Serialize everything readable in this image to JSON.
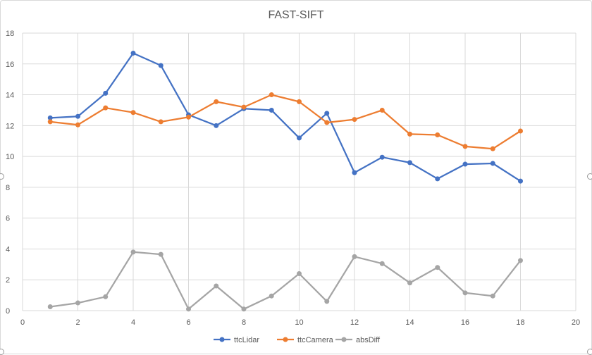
{
  "chart_data": {
    "type": "line",
    "title": "FAST-SIFT",
    "xlabel": "",
    "ylabel": "",
    "xlim": [
      0,
      20
    ],
    "ylim": [
      0,
      18
    ],
    "x_ticks": [
      0,
      2,
      4,
      6,
      8,
      10,
      12,
      14,
      16,
      18,
      20
    ],
    "y_ticks": [
      0,
      2,
      4,
      6,
      8,
      10,
      12,
      14,
      16,
      18
    ],
    "grid": true,
    "legend_position": "bottom",
    "x": [
      1,
      2,
      3,
      4,
      5,
      6,
      7,
      8,
      9,
      10,
      11,
      12,
      13,
      14,
      15,
      16,
      17,
      18
    ],
    "series": [
      {
        "name": "ttcLidar",
        "color": "#4472c4",
        "values": [
          12.5,
          12.6,
          14.1,
          16.7,
          15.9,
          12.7,
          12.0,
          13.1,
          13.0,
          11.2,
          12.8,
          8.95,
          9.95,
          9.6,
          8.55,
          9.5,
          9.55,
          8.4
        ]
      },
      {
        "name": "ttcCamera",
        "color": "#ed7d31",
        "values": [
          12.25,
          12.05,
          13.15,
          12.85,
          12.25,
          12.55,
          13.55,
          13.2,
          14.0,
          13.55,
          12.2,
          12.4,
          13.0,
          11.45,
          11.4,
          10.65,
          10.5,
          11.65
        ]
      },
      {
        "name": "absDiff",
        "color": "#a5a5a5",
        "values": [
          0.25,
          0.5,
          0.9,
          3.8,
          3.65,
          0.1,
          1.6,
          0.1,
          0.95,
          2.4,
          0.6,
          3.5,
          3.05,
          1.8,
          2.8,
          1.15,
          0.95,
          3.25
        ]
      }
    ]
  }
}
